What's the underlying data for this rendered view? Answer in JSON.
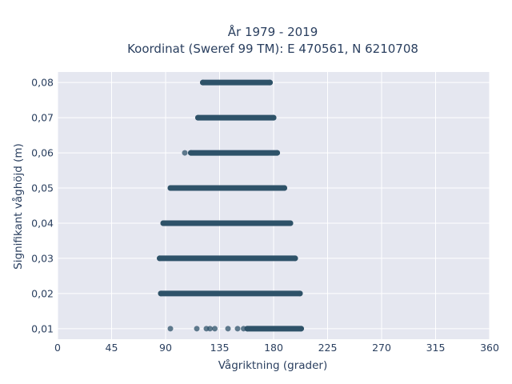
{
  "chart_data": {
    "type": "scatter",
    "title": "År 1979 - 2019",
    "subtitle": "Koordinat (Sweref 99 TM): E 470561, N 6210708",
    "xlabel": "Vågriktning (grader)",
    "ylabel": "Signifikant våghöjd (m)",
    "xlim": [
      0,
      360
    ],
    "ylim": [
      0.007,
      0.083
    ],
    "x_ticks": [
      0,
      45,
      90,
      135,
      180,
      225,
      270,
      315,
      360
    ],
    "x_tick_labels": [
      "0",
      "45",
      "90",
      "135",
      "180",
      "225",
      "270",
      "315",
      "360"
    ],
    "y_ticks": [
      0.01,
      0.02,
      0.03,
      0.04,
      0.05,
      0.06,
      0.07,
      0.08
    ],
    "y_tick_labels": [
      "0,01",
      "0,02",
      "0,03",
      "0,04",
      "0,05",
      "0,06",
      "0,07",
      "0,08"
    ],
    "grid": true,
    "marker_color": "#2e5269",
    "plot_bg": "#e5e7f0",
    "bands": [
      {
        "y": 0.08,
        "x_min": 121,
        "x_max": 177,
        "isolated": []
      },
      {
        "y": 0.07,
        "x_min": 117,
        "x_max": 180,
        "isolated": []
      },
      {
        "y": 0.06,
        "x_min": 111,
        "x_max": 183,
        "isolated": [
          106
        ]
      },
      {
        "y": 0.05,
        "x_min": 94,
        "x_max": 189,
        "isolated": []
      },
      {
        "y": 0.04,
        "x_min": 88,
        "x_max": 194,
        "isolated": []
      },
      {
        "y": 0.03,
        "x_min": 85,
        "x_max": 198,
        "isolated": []
      },
      {
        "y": 0.02,
        "x_min": 86,
        "x_max": 202,
        "isolated": []
      },
      {
        "y": 0.01,
        "x_min": 158,
        "x_max": 203,
        "isolated": [
          94,
          116,
          124,
          127,
          131,
          142,
          150,
          155
        ]
      }
    ]
  }
}
